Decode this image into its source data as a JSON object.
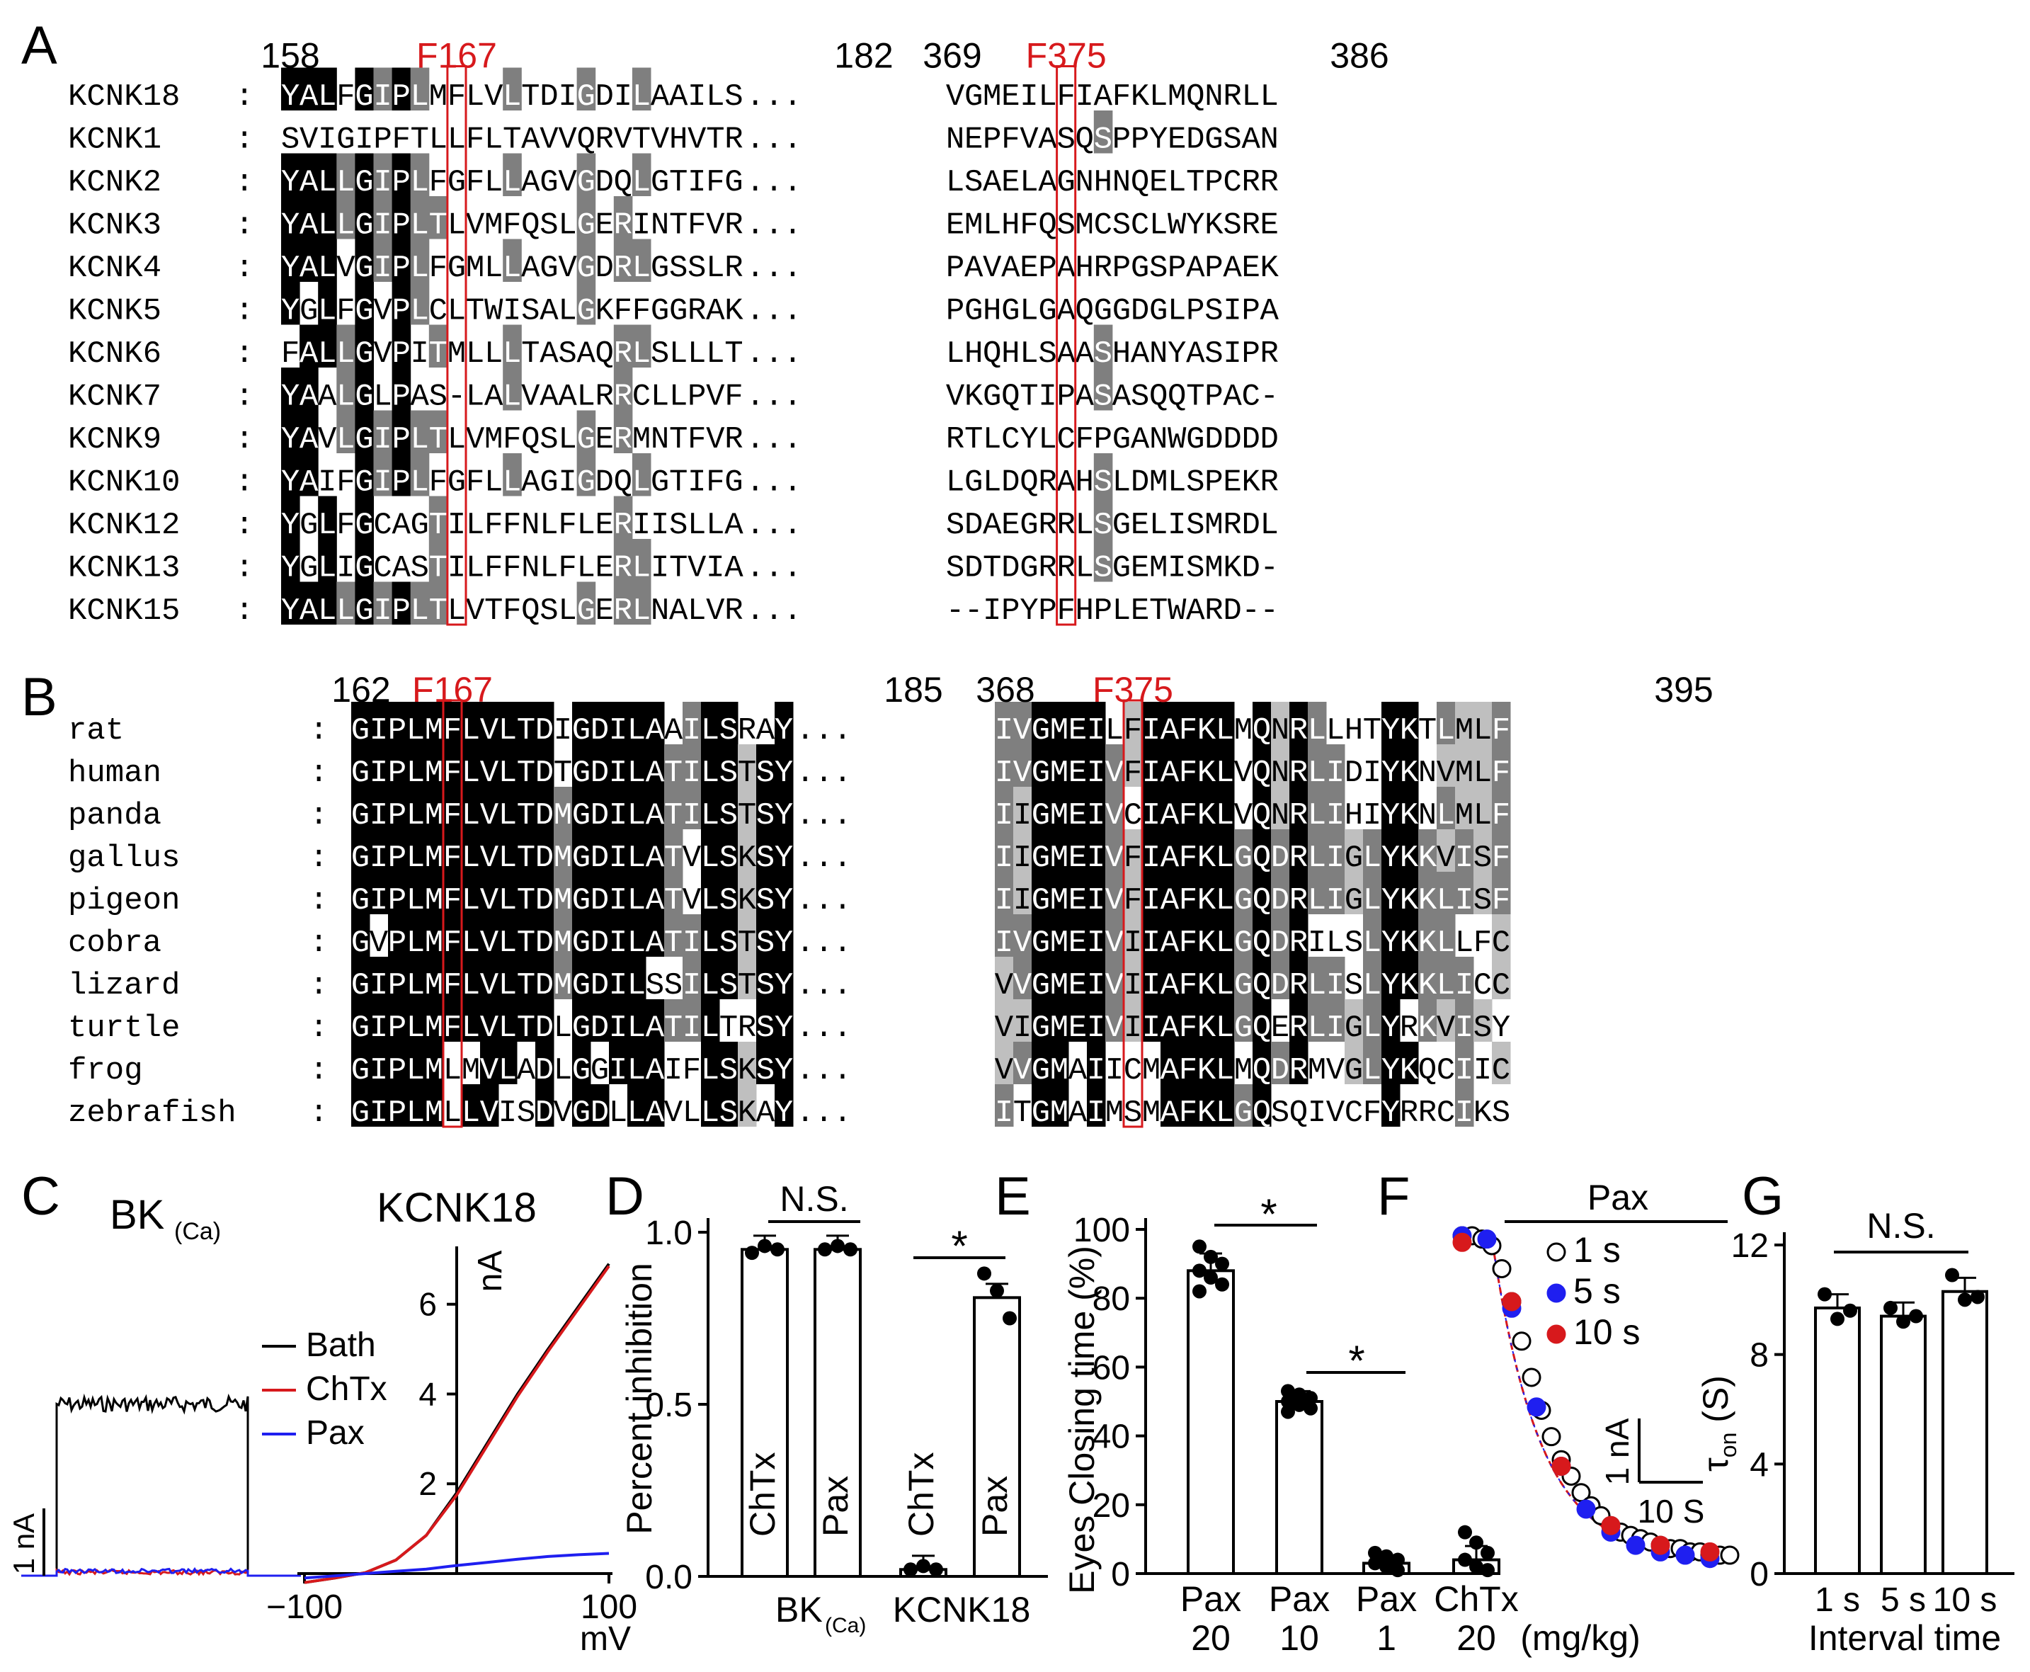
{
  "panel_labels": [
    "A",
    "B",
    "C",
    "D",
    "E",
    "F",
    "G"
  ],
  "colors": {
    "red": "#d7191c",
    "blue": "#1f1ff0",
    "black": "#000000",
    "dark_gray": "#7f7f7f",
    "light_gray": "#bfbfbf"
  },
  "panelA": {
    "positions": [
      "158",
      "182",
      "369",
      "386"
    ],
    "highlights": [
      "F167",
      "F375"
    ],
    "rows": [
      {
        "name": "KCNK18",
        "s1": "YALFGIPLMFLVLTDIGDILAAILS",
        "s2": "VGMEILFIAFKLMQNRLL"
      },
      {
        "name": "KCNK1",
        "s1": "SVIGIPFTLLFLTAVVQRVTVHVTR",
        "s2": "NEPFVASQSPPYEDGSAN"
      },
      {
        "name": "KCNK2",
        "s1": "YALLGIPLFGFLLAGVGDQLGTIFG",
        "s2": "LSAELAGNHNQELTPCRR"
      },
      {
        "name": "KCNK3",
        "s1": "YALLGIPLTLVMFQSLGERINTFVR",
        "s2": "EMLHFQSMCSCLWYKSRE"
      },
      {
        "name": "KCNK4",
        "s1": "YALVGIPLFGMLLAGVGDRLGSSLR",
        "s2": "PAVAEPAHRPGSPAPAEK"
      },
      {
        "name": "KCNK5",
        "s1": "YGLFGVPLCLTWISALGKFFGGRAK",
        "s2": "PGHGLGAQGGDGLPSIPA"
      },
      {
        "name": "KCNK6",
        "s1": "FALLGVPITMLLLTASAQRLSLLLT",
        "s2": "LHQHLSAASHANYASIPR"
      },
      {
        "name": "KCNK7",
        "s1": "YAALGLPAS-LALVAALRRCLLPVF",
        "s2": "VKGQTIPASASQQTPAC-"
      },
      {
        "name": "KCNK9",
        "s1": "YAVLGIPLTLVMFQSLGERMNTFVR",
        "s2": "RTLCYLCFPGANWGDDDD"
      },
      {
        "name": "KCNK10",
        "s1": "YAIFGIPLFGFLLAGIGDQLGTIFG",
        "s2": "LGLDQRAHSLDMLSPEKR"
      },
      {
        "name": "KCNK12",
        "s1": "YGLFGCAGTILFFNLFLERIISLLA",
        "s2": "SDAEGRRLSGELISMRDL"
      },
      {
        "name": "KCNK13",
        "s1": "YGLIGCASTILFFNLFLERLITVIA",
        "s2": "SDTDGRRLSGEMISMKD-"
      },
      {
        "name": "KCNK15",
        "s1": "YALLGIPLTLVTFQSLGERLNALVR",
        "s2": "--IPYPFHPLETWARD--"
      }
    ]
  },
  "panelB": {
    "positions": [
      "162",
      "185",
      "368",
      "395"
    ],
    "highlights": [
      "F167",
      "F375"
    ],
    "rows": [
      {
        "name": "rat",
        "s1": "GIPLMFLVLTDIGDILAAILSRAY",
        "s2": "IVGMEILFIAFKLMQNRLLHTYKTLMLF"
      },
      {
        "name": "human",
        "s1": "GIPLMFLVLTDTGDILATILSTSY",
        "s2": "IVGMEIVFIAFKLVQNRLIDIYKNVMLF"
      },
      {
        "name": "panda",
        "s1": "GIPLMFLVLTDMGDILATILSTSY",
        "s2": "IIGMEIVCIAFKLVQNRLIHIYKNLMLF"
      },
      {
        "name": "gallus",
        "s1": "GIPLMFLVLTDMGDILATVLSKSY",
        "s2": "IIGMEIVFIAFKLGQDRLIGLYKKVISF"
      },
      {
        "name": "pigeon",
        "s1": "GIPLMFLVLTDMGDILATVLSKSY",
        "s2": "IIGMEIVFIAFKLGQDRLIGLYKKLISF"
      },
      {
        "name": "cobra",
        "s1": "GVPLMFLVLTDMGDILATILSTSY",
        "s2": "IVGMEIVIIAFKLGQDRILSLYKKLLFC"
      },
      {
        "name": "lizard",
        "s1": "GIPLMFLVLTDMGDILSSILSTSY",
        "s2": "VVGMEIVIIAFKLGQDRLISLYKKLICC"
      },
      {
        "name": "turtle",
        "s1": "GIPLMFLVLTDLGDILATILTRSY",
        "s2": "VIGMEIVIIAFKLGQERLIGLYRKVISY"
      },
      {
        "name": "frog",
        "s1": "GIPLMLMVLADLGGILAIFLSKSY",
        "s2": "VVGMAIICMAFKLMQDRMVGLYKQCIIC"
      },
      {
        "name": "zebrafish",
        "s1": "GIPLMLLVISDVGDLLAVLLSKAY",
        "s2": "ITGMAIMSMAFKLGQSQIVCFYRRCIKS"
      }
    ]
  },
  "chart_data": [
    {
      "panel": "C-left",
      "type": "line",
      "title": "BK(Ca)",
      "scale_bar": "1 nA",
      "series": [
        {
          "name": "Bath",
          "color": "#000000",
          "level_nA": 2.55
        },
        {
          "name": "ChTx",
          "color": "#d7191c",
          "level_nA": 0.05
        },
        {
          "name": "Pax",
          "color": "#1f1ff0",
          "level_nA": 0.07
        }
      ]
    },
    {
      "panel": "C-right",
      "type": "line",
      "title": "KCNK18",
      "xlabel": "mV",
      "ylabel": "nA",
      "xticks": [
        "−100",
        "100"
      ],
      "yticks": [
        "2",
        "4",
        "6"
      ],
      "xlim": [
        -100,
        100
      ],
      "ylim": [
        -0.2,
        7
      ],
      "legend": [
        "Bath",
        "ChTx",
        "Pax"
      ],
      "series": [
        {
          "name": "Bath",
          "color": "#000000",
          "x": [
            -100,
            -80,
            -60,
            -40,
            -20,
            0,
            20,
            40,
            60,
            80,
            100
          ],
          "y": [
            -0.2,
            -0.1,
            0.02,
            0.3,
            0.85,
            1.8,
            2.9,
            4.0,
            5.0,
            5.95,
            6.9
          ]
        },
        {
          "name": "ChTx",
          "color": "#d7191c",
          "x": [
            -100,
            -80,
            -60,
            -40,
            -20,
            0,
            20,
            40,
            60,
            80,
            100
          ],
          "y": [
            -0.2,
            -0.1,
            0.02,
            0.3,
            0.85,
            1.75,
            2.85,
            3.95,
            4.95,
            5.9,
            6.85
          ]
        },
        {
          "name": "Pax",
          "color": "#1f1ff0",
          "x": [
            -100,
            -80,
            -60,
            -40,
            -20,
            0,
            20,
            40,
            60,
            80,
            100
          ],
          "y": [
            -0.1,
            -0.05,
            0.0,
            0.05,
            0.1,
            0.18,
            0.25,
            0.32,
            0.38,
            0.42,
            0.45
          ]
        }
      ]
    },
    {
      "panel": "D",
      "type": "bar",
      "ylabel": "Percent inhibition",
      "ylim": [
        0,
        1.0
      ],
      "yticks": [
        "0.0",
        "0.5",
        "1.0"
      ],
      "bars": [
        {
          "label": "ChTx",
          "value": 0.95,
          "points": [
            0.94,
            0.96,
            0.95
          ]
        },
        {
          "label": "Pax",
          "value": 0.95,
          "points": [
            0.95,
            0.96,
            0.95
          ]
        },
        {
          "label": "ChTx",
          "value": 0.02,
          "points": [
            0.02,
            0.03,
            0.02
          ]
        },
        {
          "label": "Pax",
          "value": 0.81,
          "points": [
            0.88,
            0.83,
            0.75
          ]
        }
      ],
      "groups": [
        "BK",
        "KCNK18"
      ],
      "group_sub": "(Ca)",
      "annotations": [
        "N.S.",
        "*"
      ]
    },
    {
      "panel": "E",
      "type": "bar",
      "ylabel": "Eyes Closing time (%)",
      "ylim": [
        0,
        100
      ],
      "yticks": [
        "0",
        "20",
        "40",
        "60",
        "80",
        "100"
      ],
      "categories": [
        "Pax 20",
        "Pax 10",
        "Pax 1",
        "ChTx 20"
      ],
      "category_lines": [
        [
          "Pax",
          "20"
        ],
        [
          "Pax",
          "10"
        ],
        [
          "Pax",
          "1"
        ],
        [
          "ChTx",
          "20"
        ]
      ],
      "unit": "(mg/kg)",
      "values": [
        88,
        50,
        3,
        4
      ],
      "points": [
        [
          95,
          92,
          90,
          88,
          86,
          84,
          82
        ],
        [
          53,
          52,
          51,
          50,
          49,
          48,
          47
        ],
        [
          6,
          5,
          4,
          3,
          2,
          1
        ],
        [
          12,
          9,
          6,
          4,
          2,
          1
        ]
      ],
      "annotations": [
        "*",
        "*"
      ]
    },
    {
      "panel": "F",
      "type": "scatter",
      "title": "Pax",
      "scale_bars": [
        "1 nA",
        "10 S"
      ],
      "legend": [
        "1 s",
        "5 s",
        "10 s"
      ],
      "series": [
        {
          "name": "1 s",
          "color": "#ffffff",
          "t": [
            0,
            2,
            4,
            6,
            8,
            10,
            12,
            14,
            16,
            18,
            20,
            22,
            24,
            26,
            28,
            30,
            32,
            34,
            36,
            38,
            40,
            42,
            44,
            46,
            48,
            50,
            52,
            54
          ],
          "y": [
            1.0,
            1.0,
            0.99,
            0.97,
            0.9,
            0.8,
            0.68,
            0.57,
            0.47,
            0.39,
            0.32,
            0.27,
            0.22,
            0.18,
            0.15,
            0.12,
            0.1,
            0.09,
            0.08,
            0.07,
            0.06,
            0.05,
            0.05,
            0.04,
            0.04,
            0.03,
            0.03,
            0.03
          ]
        },
        {
          "name": "5 s",
          "color": "#1f1ff0",
          "t": [
            0,
            5,
            10,
            15,
            20,
            25,
            30,
            35,
            40,
            45,
            50
          ],
          "y": [
            1.0,
            0.99,
            0.78,
            0.48,
            0.3,
            0.17,
            0.1,
            0.06,
            0.04,
            0.03,
            0.02
          ]
        },
        {
          "name": "10 s",
          "color": "#d7191c",
          "t": [
            0,
            10,
            20,
            30,
            40,
            50
          ],
          "y": [
            0.98,
            0.8,
            0.3,
            0.12,
            0.06,
            0.04
          ]
        }
      ]
    },
    {
      "panel": "G",
      "type": "bar",
      "ylabel": "τon (S)",
      "ylabel_main": "τ",
      "ylabel_sub": "on",
      "ylabel_unit": "(S)",
      "ylim": [
        0,
        12
      ],
      "yticks": [
        "0",
        "4",
        "8",
        "12"
      ],
      "categories": [
        "1 s",
        "5 s",
        "10 s"
      ],
      "values": [
        9.7,
        9.4,
        10.3
      ],
      "points": [
        [
          10.2,
          9.3,
          9.6
        ],
        [
          9.7,
          9.2,
          9.4
        ],
        [
          10.9,
          10.0,
          10.1
        ]
      ],
      "xlabel": "Interval time",
      "annotations": [
        "N.S."
      ]
    }
  ]
}
